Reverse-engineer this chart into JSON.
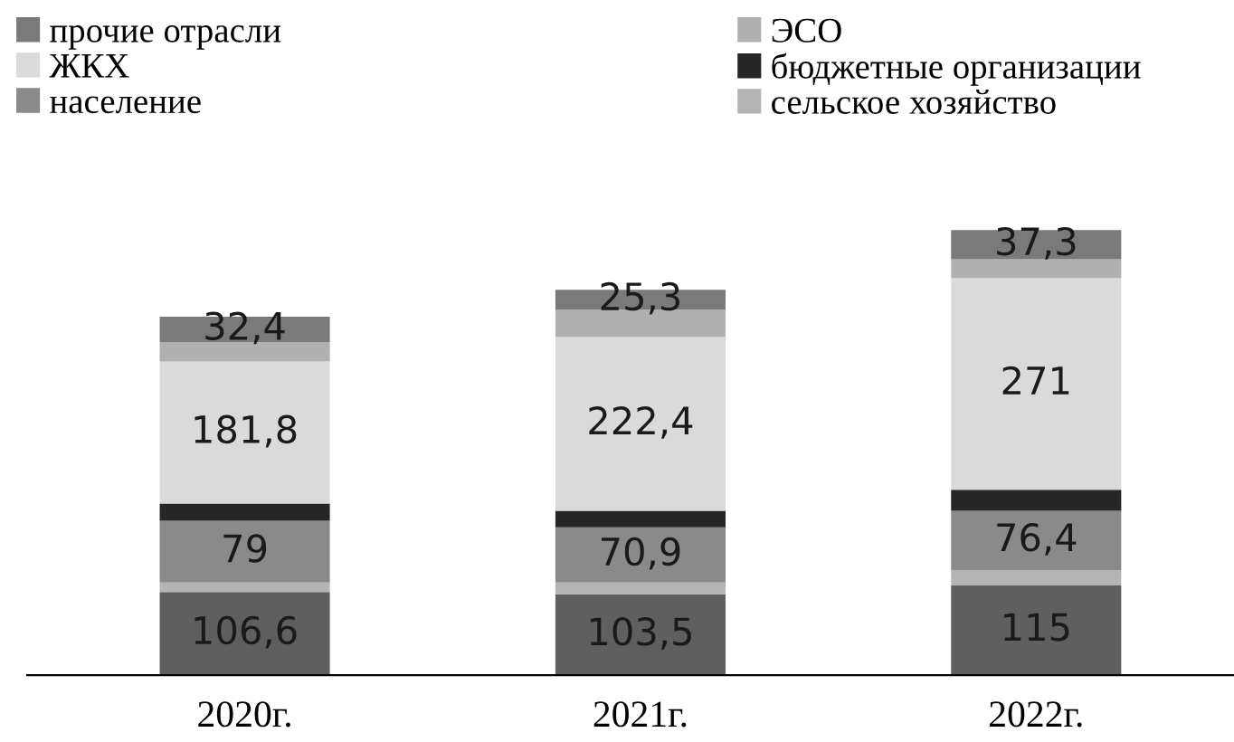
{
  "chart_data": {
    "type": "bar",
    "stacked": true,
    "legend": "top",
    "categories": [
      "2020г.",
      "2021г.",
      "2022г."
    ],
    "series": [
      {
        "color": "#5f5f5f",
        "values": [
          106.6,
          103.5,
          115
        ],
        "value_labels": [
          "106,6",
          "103,5",
          "115"
        ]
      },
      {
        "name": "сельское хозяйство",
        "color": "#b4b4b4",
        "values": [
          12,
          15,
          19
        ]
      },
      {
        "name": "население",
        "color": "#8a8a8a",
        "values": [
          79,
          70.9,
          76.4
        ],
        "value_labels": [
          "79",
          "70,9",
          "76,4"
        ]
      },
      {
        "name": "бюджетные организации",
        "color": "#262626",
        "values": [
          22,
          21,
          27
        ]
      },
      {
        "name": "ЖКХ",
        "color": "#dadada",
        "values": [
          181.8,
          222.4,
          271
        ],
        "value_labels": [
          "181,8",
          "222,4",
          "271"
        ]
      },
      {
        "name": "ЭСО",
        "color": "#b0b0b0",
        "values": [
          25,
          35,
          24
        ]
      },
      {
        "name": "прочие отрасли",
        "color": "#7a7a7a",
        "values": [
          32.4,
          25.3,
          37.3
        ],
        "value_labels": [
          "32,4",
          "25,3",
          "37,3"
        ]
      }
    ]
  }
}
